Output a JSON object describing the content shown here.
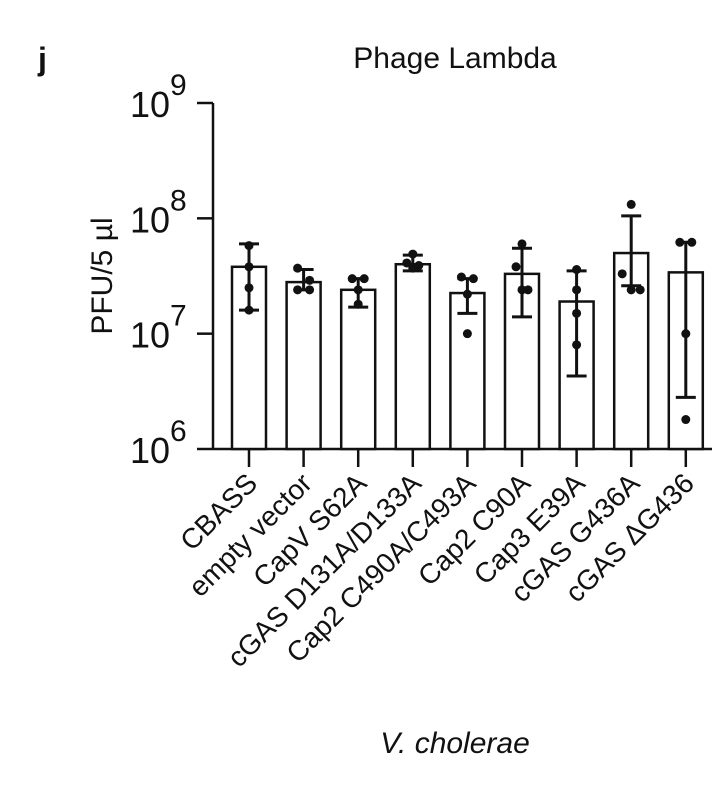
{
  "chart_data": {
    "type": "bar",
    "panel_label": "j",
    "title": "Phage Lambda",
    "ylabel": "PFU/5 µl",
    "xlabel": "V. cholerae",
    "yscale": "log",
    "ylim": [
      1000000,
      1000000000
    ],
    "y_tick_labels": [
      {
        "base": "10",
        "exp": "6"
      },
      {
        "base": "10",
        "exp": "7"
      },
      {
        "base": "10",
        "exp": "8"
      },
      {
        "base": "10",
        "exp": "9"
      }
    ],
    "categories": [
      "CBASS",
      "empty vector",
      "CapV S62A",
      "cGAS D131A/D133A",
      "Cap2 C490A/C493A",
      "Cap2 C90A",
      "Cap3 E39A",
      "cGAS G436A",
      "cGAS ΔG436"
    ],
    "values": [
      38000000,
      28000000,
      24000000,
      40000000,
      22500000,
      33000000,
      19000000,
      50000000,
      34000000
    ],
    "error_low": [
      16000000,
      24000000,
      17000000,
      35000000,
      15000000,
      14000000,
      4300000,
      26000000,
      2800000
    ],
    "error_high": [
      60000000,
      36000000,
      30000000,
      48000000,
      30000000,
      55000000,
      35000000,
      105000000,
      62000000
    ],
    "points": [
      [
        58000000,
        38000000,
        25000000,
        16000000
      ],
      [
        37000000,
        29000000,
        24000000,
        24000000
      ],
      [
        30000000,
        30000000,
        24000000,
        18000000
      ],
      [
        49000000,
        41000000,
        39000000,
        37000000
      ],
      [
        31000000,
        30000000,
        22000000,
        10000000
      ],
      [
        60000000,
        38000000,
        24000000,
        24000000
      ],
      [
        36000000,
        24000000,
        15000000,
        8000000
      ],
      [
        132000000,
        33000000,
        24000000,
        24000000
      ],
      [
        62000000,
        62000000,
        10000000,
        1800000
      ]
    ]
  }
}
